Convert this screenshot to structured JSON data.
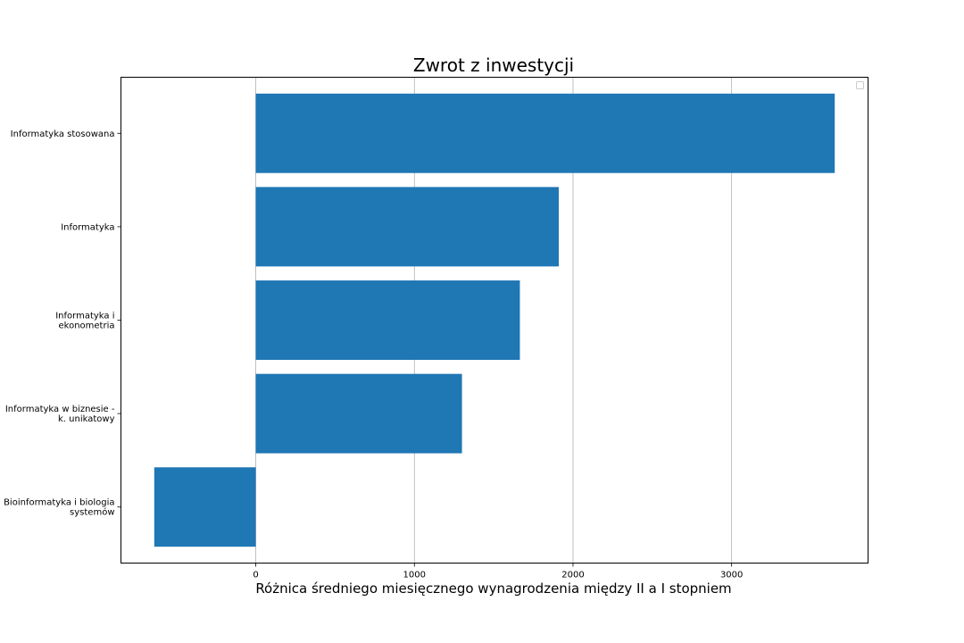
{
  "chart_data": {
    "type": "bar",
    "orientation": "horizontal",
    "title": "Zwrot z inwestycji",
    "xlabel": "Różnica średniego miesięcznego wynagrodzenia między II a I stopniem",
    "ylabel": "",
    "categories": [
      "Informatyka stosowana",
      "Informatyka",
      "Informatyka i\nekonometria",
      "Informatyka w biznesie -\nk. unikatowy",
      "Bioinformatyka i biologia\nsystemów"
    ],
    "values": [
      3650,
      1910,
      1665,
      1300,
      -640
    ],
    "xlim": [
      -850,
      3860
    ],
    "xticks": [
      0,
      1000,
      2000,
      3000
    ],
    "grid": "vertical",
    "legend": "top-right",
    "colors": {
      "bar": "#1f77b4",
      "grid": "#b0b0b0",
      "axis": "#000000"
    }
  }
}
